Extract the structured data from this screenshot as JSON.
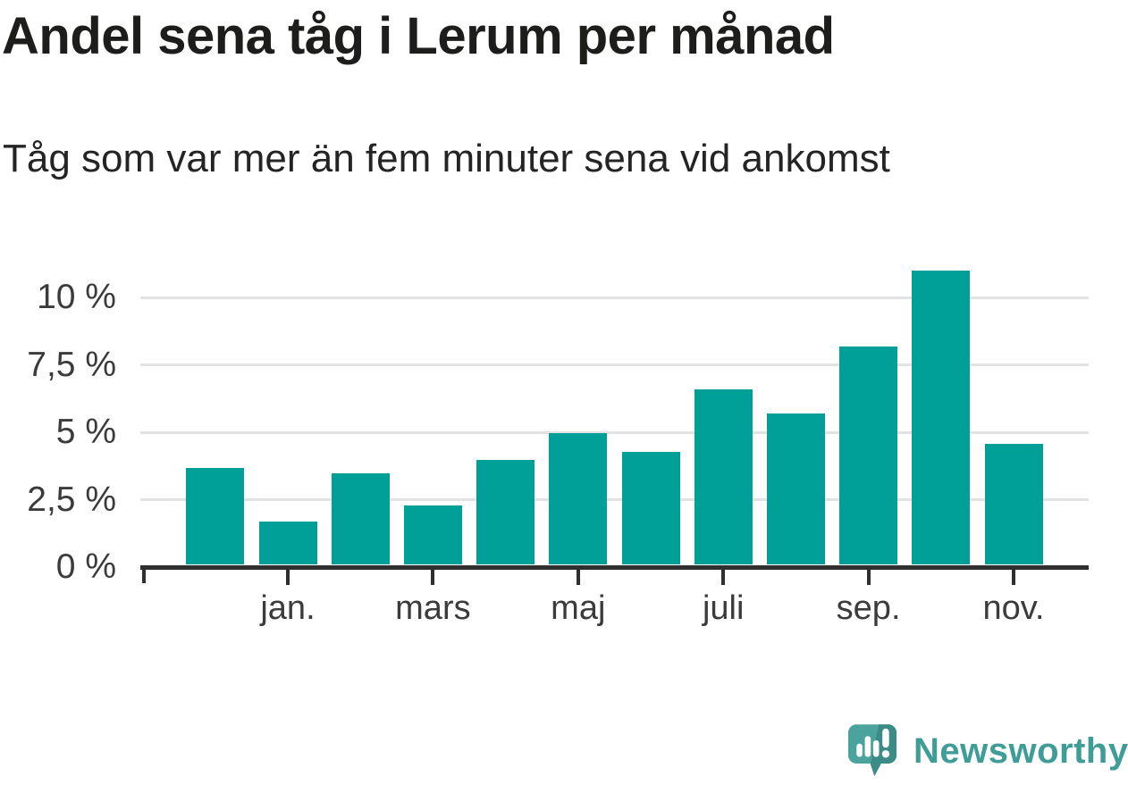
{
  "header": {
    "title": "Andel sena tåg i Lerum per månad",
    "subtitle": "Tåg som var mer än fem minuter sena vid ankomst"
  },
  "chart_data": {
    "type": "bar",
    "title": "Andel sena tåg i Lerum per månad",
    "subtitle": "Tåg som var mer än fem minuter sena vid ankomst",
    "unit": "%",
    "categories": [
      "",
      "jan.",
      "",
      "mars",
      "",
      "maj",
      "",
      "juli",
      "",
      "sep.",
      "",
      "nov."
    ],
    "values": [
      3.6,
      1.6,
      3.4,
      2.2,
      3.9,
      4.9,
      4.2,
      6.5,
      5.6,
      8.1,
      10.9,
      4.5
    ],
    "x_tick_labels": [
      "jan.",
      "mars",
      "maj",
      "juli",
      "sep.",
      "nov."
    ],
    "x_tick_indices": [
      1,
      3,
      5,
      7,
      9,
      11
    ],
    "y_ticks": [
      0,
      2.5,
      5,
      7.5,
      10
    ],
    "y_tick_labels": [
      "0 %",
      "2,5 %",
      "5 %",
      "7,5 %",
      "10 %"
    ],
    "ylim": [
      0,
      11.7
    ],
    "grid": "horizontal",
    "legend_position": "none",
    "bar_color": "#00a099"
  },
  "colors": {
    "bar": "#00a099",
    "axis": "#2f2f2f",
    "gridline": "#e2e2e2",
    "axis_text": "#3b3b3b",
    "title_text": "#1d1d1b",
    "logo_teal": "#4aa49d",
    "logo_teal_dark": "#3b8b86",
    "logo_wordmark": "#3f9d98"
  },
  "footer": {
    "brand": "Newsworthy"
  }
}
